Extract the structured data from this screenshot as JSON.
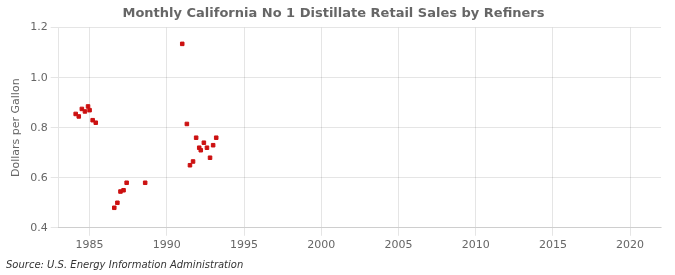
{
  "chart_data": {
    "type": "scatter",
    "title": "Monthly California No 1 Distillate Retail Sales by Refiners",
    "ylabel": "Dollars per Gallon",
    "annotation": "Source: U.S. Energy Information Administration",
    "x": [
      1984.1,
      1984.3,
      1984.5,
      1984.7,
      1984.9,
      1985.0,
      1985.2,
      1985.4,
      1986.6,
      1986.8,
      1987.0,
      1987.2,
      1987.4,
      1988.6,
      1991.0,
      1991.3,
      1991.5,
      1991.7,
      1991.9,
      1992.1,
      1992.2,
      1992.4,
      1992.6,
      1992.8,
      1993.0,
      1993.2
    ],
    "values": [
      0.855,
      0.845,
      0.875,
      0.865,
      0.885,
      0.87,
      0.83,
      0.82,
      0.48,
      0.5,
      0.545,
      0.55,
      0.58,
      0.58,
      1.135,
      0.815,
      0.65,
      0.665,
      0.76,
      0.72,
      0.71,
      0.74,
      0.72,
      0.68,
      0.73,
      0.76
    ],
    "color": "#cc1111",
    "marker": "square",
    "xlim": [
      1983,
      2022
    ],
    "ylim": [
      0.4,
      1.2
    ],
    "xticks": [
      1985,
      1990,
      1995,
      2000,
      2005,
      2010,
      2015,
      2020
    ],
    "yticks": [
      0.4,
      0.6,
      0.8,
      {
        "value": 1.0,
        "label": "1.0"
      },
      1.2
    ],
    "grid": true
  }
}
